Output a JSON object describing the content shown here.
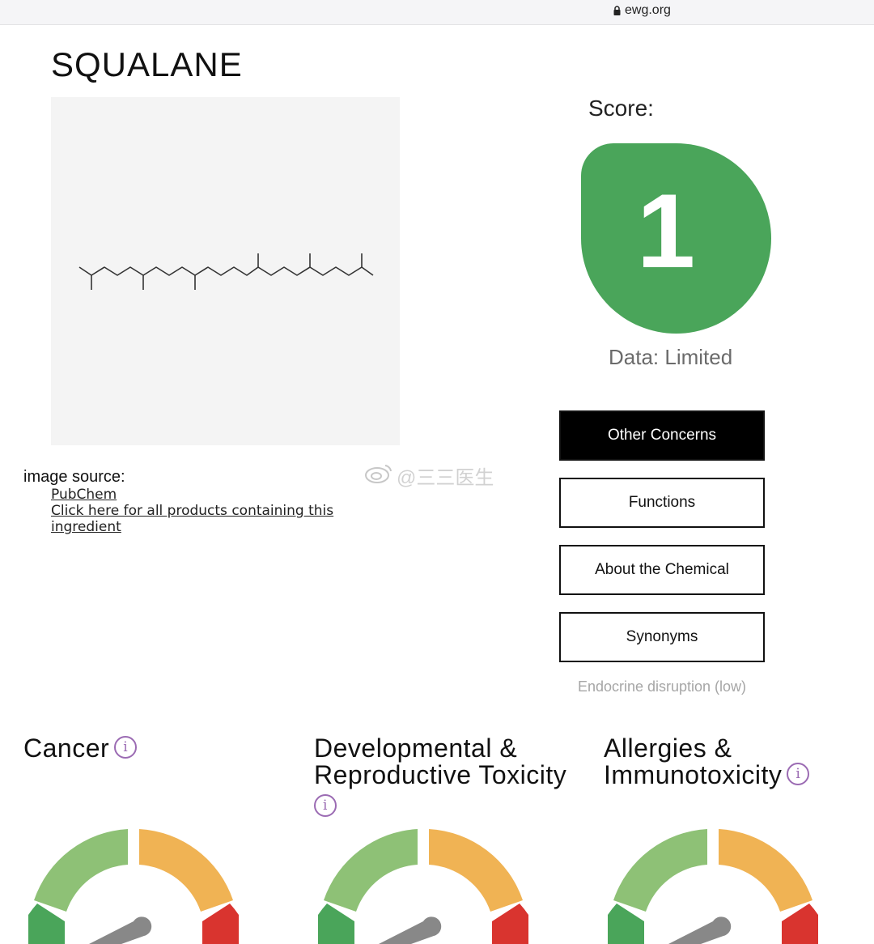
{
  "browser": {
    "url": "ewg.org"
  },
  "ingredient": {
    "name": "SQUALANE"
  },
  "image_source": {
    "label": "image source:",
    "pubchem_link": "PubChem",
    "products_link": "Click here for all products containing this ingredient"
  },
  "score": {
    "label": "Score:",
    "value": "1",
    "data_availability": "Data: Limited",
    "badge_color": "#4aa55a"
  },
  "tabs": [
    {
      "label": "Other Concerns",
      "active": true
    },
    {
      "label": "Functions",
      "active": false
    },
    {
      "label": "About the Chemical",
      "active": false
    },
    {
      "label": "Synonyms",
      "active": false
    }
  ],
  "other_concerns_text": "Endocrine disruption (low)",
  "concerns": [
    {
      "title": "Cancer"
    },
    {
      "title": "Developmental & Reproductive Toxicity"
    },
    {
      "title": "Allergies & Immunotoxicity"
    }
  ],
  "gauge_colors": {
    "low": "#4aa55a",
    "low_moderate": "#8ec176",
    "moderate": "#f0b354",
    "high": "#d9342f",
    "needle": "#888888"
  },
  "watermark": "@三三医生",
  "icons": {
    "lock": "lock-icon",
    "info": "info-icon"
  }
}
